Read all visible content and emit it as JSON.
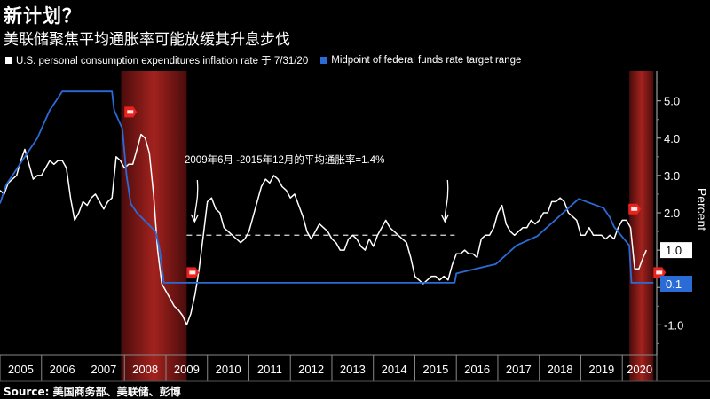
{
  "header": {
    "title": "新计划？",
    "subtitle": "美联储聚焦平均通胀率可能放缓其升息步伐"
  },
  "legend": [
    {
      "label": "U.S. personal consumption expenditures inflation rate 于 7/31/20",
      "color": "#ffffff"
    },
    {
      "label": "Midpoint of federal funds rate target range",
      "color": "#2b6bd6"
    }
  ],
  "source": "Source: 美国商务部、美联储、彭博",
  "chart_data": {
    "type": "line",
    "ylabel": "Percent",
    "ylim": [
      -1.8,
      5.8
    ],
    "xlim": [
      2005.0,
      2020.83
    ],
    "yticks": [
      {
        "value": 5,
        "label": "5.0"
      },
      {
        "value": 4,
        "label": "4.0"
      },
      {
        "value": 3,
        "label": "3.0"
      },
      {
        "value": 2,
        "label": "2.0"
      },
      {
        "value": 1,
        "label": "1.0"
      },
      {
        "value": 0,
        "label": "0.0"
      },
      {
        "value": -1,
        "label": "-1.0"
      }
    ],
    "xtick_labels": [
      "2005",
      "2006",
      "2007",
      "2008",
      "2009",
      "2010",
      "2011",
      "2012",
      "2013",
      "2014",
      "2015",
      "2016",
      "2017",
      "2018",
      "2019",
      "2020"
    ],
    "recessions": [
      [
        2007.92,
        2009.5
      ],
      [
        2020.17,
        2020.75
      ]
    ],
    "annotation": {
      "text": "2009年6月 -2015年12月的平均通胀率=1.4%",
      "value": 1.4,
      "x_start": 2009.5,
      "x_end": 2015.96
    },
    "last_value_labels": [
      {
        "series": "pce",
        "text": "1.0",
        "value": 1.0
      },
      {
        "series": "ffr",
        "text": "0.1",
        "value": 0.1
      }
    ],
    "rec_flags": [
      {
        "x": 2008.0,
        "y": 4.7
      },
      {
        "x": 2009.5,
        "y": 0.4
      },
      {
        "x": 2020.15,
        "y": 2.1
      },
      {
        "x": 2020.75,
        "y": 0.4
      }
    ],
    "series": [
      {
        "name": "U.S. personal consumption expenditures inflation rate",
        "color": "#ffffff",
        "points": [
          [
            2005.0,
            2.6
          ],
          [
            2005.1,
            2.5
          ],
          [
            2005.2,
            2.8
          ],
          [
            2005.3,
            2.9
          ],
          [
            2005.4,
            3.0
          ],
          [
            2005.5,
            3.4
          ],
          [
            2005.6,
            3.7
          ],
          [
            2005.7,
            3.3
          ],
          [
            2005.8,
            2.9
          ],
          [
            2005.9,
            3.0
          ],
          [
            2006.0,
            3.0
          ],
          [
            2006.1,
            3.2
          ],
          [
            2006.2,
            3.4
          ],
          [
            2006.3,
            3.3
          ],
          [
            2006.4,
            3.4
          ],
          [
            2006.5,
            3.4
          ],
          [
            2006.6,
            3.2
          ],
          [
            2006.7,
            2.4
          ],
          [
            2006.8,
            1.8
          ],
          [
            2006.9,
            2.0
          ],
          [
            2007.0,
            2.3
          ],
          [
            2007.1,
            2.2
          ],
          [
            2007.2,
            2.4
          ],
          [
            2007.3,
            2.5
          ],
          [
            2007.4,
            2.3
          ],
          [
            2007.5,
            2.1
          ],
          [
            2007.6,
            2.3
          ],
          [
            2007.7,
            2.4
          ],
          [
            2007.8,
            3.5
          ],
          [
            2007.9,
            3.4
          ],
          [
            2008.0,
            3.2
          ],
          [
            2008.1,
            3.3
          ],
          [
            2008.2,
            3.3
          ],
          [
            2008.3,
            3.7
          ],
          [
            2008.4,
            4.1
          ],
          [
            2008.5,
            4.0
          ],
          [
            2008.6,
            3.6
          ],
          [
            2008.7,
            2.5
          ],
          [
            2008.8,
            1.0
          ],
          [
            2008.9,
            0.1
          ],
          [
            2009.0,
            -0.1
          ],
          [
            2009.1,
            -0.3
          ],
          [
            2009.2,
            -0.5
          ],
          [
            2009.3,
            -0.6
          ],
          [
            2009.4,
            -0.75
          ],
          [
            2009.5,
            -1.0
          ],
          [
            2009.6,
            -0.7
          ],
          [
            2009.7,
            -0.2
          ],
          [
            2009.8,
            0.5
          ],
          [
            2009.9,
            1.4
          ],
          [
            2010.0,
            2.3
          ],
          [
            2010.1,
            2.4
          ],
          [
            2010.2,
            2.1
          ],
          [
            2010.3,
            2.0
          ],
          [
            2010.4,
            1.6
          ],
          [
            2010.5,
            1.5
          ],
          [
            2010.6,
            1.4
          ],
          [
            2010.7,
            1.3
          ],
          [
            2010.8,
            1.2
          ],
          [
            2010.9,
            1.3
          ],
          [
            2011.0,
            1.5
          ],
          [
            2011.1,
            1.9
          ],
          [
            2011.2,
            2.3
          ],
          [
            2011.3,
            2.7
          ],
          [
            2011.4,
            2.9
          ],
          [
            2011.5,
            2.8
          ],
          [
            2011.6,
            3.0
          ],
          [
            2011.7,
            2.9
          ],
          [
            2011.8,
            2.7
          ],
          [
            2011.9,
            2.6
          ],
          [
            2012.0,
            2.4
          ],
          [
            2012.1,
            2.5
          ],
          [
            2012.2,
            2.2
          ],
          [
            2012.3,
            1.9
          ],
          [
            2012.4,
            1.5
          ],
          [
            2012.5,
            1.3
          ],
          [
            2012.6,
            1.5
          ],
          [
            2012.7,
            1.7
          ],
          [
            2012.8,
            1.6
          ],
          [
            2012.9,
            1.5
          ],
          [
            2013.0,
            1.3
          ],
          [
            2013.1,
            1.2
          ],
          [
            2013.2,
            1.0
          ],
          [
            2013.3,
            1.0
          ],
          [
            2013.4,
            1.3
          ],
          [
            2013.5,
            1.4
          ],
          [
            2013.6,
            1.3
          ],
          [
            2013.7,
            1.1
          ],
          [
            2013.8,
            1.0
          ],
          [
            2013.9,
            1.3
          ],
          [
            2014.0,
            1.1
          ],
          [
            2014.1,
            1.4
          ],
          [
            2014.2,
            1.6
          ],
          [
            2014.3,
            1.8
          ],
          [
            2014.4,
            1.6
          ],
          [
            2014.5,
            1.5
          ],
          [
            2014.6,
            1.4
          ],
          [
            2014.7,
            1.3
          ],
          [
            2014.8,
            1.2
          ],
          [
            2014.9,
            0.8
          ],
          [
            2015.0,
            0.3
          ],
          [
            2015.1,
            0.2
          ],
          [
            2015.2,
            0.1
          ],
          [
            2015.3,
            0.2
          ],
          [
            2015.4,
            0.3
          ],
          [
            2015.5,
            0.3
          ],
          [
            2015.6,
            0.2
          ],
          [
            2015.7,
            0.3
          ],
          [
            2015.8,
            0.2
          ],
          [
            2015.9,
            0.6
          ],
          [
            2016.0,
            0.9
          ],
          [
            2016.1,
            0.9
          ],
          [
            2016.2,
            1.0
          ],
          [
            2016.3,
            0.9
          ],
          [
            2016.4,
            0.9
          ],
          [
            2016.5,
            0.8
          ],
          [
            2016.6,
            1.3
          ],
          [
            2016.7,
            1.4
          ],
          [
            2016.8,
            1.4
          ],
          [
            2016.9,
            1.6
          ],
          [
            2017.0,
            2.0
          ],
          [
            2017.1,
            2.2
          ],
          [
            2017.2,
            1.7
          ],
          [
            2017.3,
            1.5
          ],
          [
            2017.4,
            1.4
          ],
          [
            2017.5,
            1.5
          ],
          [
            2017.6,
            1.6
          ],
          [
            2017.7,
            1.6
          ],
          [
            2017.8,
            1.8
          ],
          [
            2017.9,
            1.7
          ],
          [
            2018.0,
            1.8
          ],
          [
            2018.1,
            2.0
          ],
          [
            2018.2,
            2.0
          ],
          [
            2018.3,
            2.3
          ],
          [
            2018.4,
            2.3
          ],
          [
            2018.5,
            2.4
          ],
          [
            2018.6,
            2.3
          ],
          [
            2018.7,
            2.0
          ],
          [
            2018.8,
            1.9
          ],
          [
            2018.9,
            1.8
          ],
          [
            2019.0,
            1.4
          ],
          [
            2019.1,
            1.4
          ],
          [
            2019.2,
            1.6
          ],
          [
            2019.3,
            1.4
          ],
          [
            2019.4,
            1.4
          ],
          [
            2019.5,
            1.4
          ],
          [
            2019.6,
            1.3
          ],
          [
            2019.7,
            1.4
          ],
          [
            2019.8,
            1.3
          ],
          [
            2019.9,
            1.6
          ],
          [
            2020.0,
            1.8
          ],
          [
            2020.1,
            1.8
          ],
          [
            2020.2,
            1.6
          ],
          [
            2020.3,
            0.5
          ],
          [
            2020.4,
            0.5
          ],
          [
            2020.5,
            0.8
          ],
          [
            2020.58,
            1.0
          ]
        ]
      },
      {
        "name": "Midpoint of federal funds rate target range",
        "color": "#2b6bd6",
        "points": [
          [
            2005.0,
            2.25
          ],
          [
            2005.15,
            2.75
          ],
          [
            2005.3,
            3.0
          ],
          [
            2005.45,
            3.25
          ],
          [
            2005.6,
            3.5
          ],
          [
            2005.75,
            3.75
          ],
          [
            2005.9,
            4.0
          ],
          [
            2006.0,
            4.25
          ],
          [
            2006.1,
            4.5
          ],
          [
            2006.2,
            4.75
          ],
          [
            2006.35,
            5.0
          ],
          [
            2006.5,
            5.25
          ],
          [
            2007.7,
            5.25
          ],
          [
            2007.75,
            4.75
          ],
          [
            2007.85,
            4.5
          ],
          [
            2007.95,
            4.25
          ],
          [
            2008.05,
            3.0
          ],
          [
            2008.15,
            2.25
          ],
          [
            2008.3,
            2.0
          ],
          [
            2008.75,
            1.5
          ],
          [
            2008.85,
            1.0
          ],
          [
            2008.95,
            0.125
          ],
          [
            2015.96,
            0.125
          ],
          [
            2016.0,
            0.375
          ],
          [
            2016.95,
            0.625
          ],
          [
            2017.2,
            0.875
          ],
          [
            2017.45,
            1.125
          ],
          [
            2017.95,
            1.375
          ],
          [
            2018.2,
            1.625
          ],
          [
            2018.45,
            1.875
          ],
          [
            2018.7,
            2.125
          ],
          [
            2018.95,
            2.375
          ],
          [
            2019.55,
            2.125
          ],
          [
            2019.7,
            1.875
          ],
          [
            2019.8,
            1.625
          ],
          [
            2020.17,
            1.125
          ],
          [
            2020.22,
            0.125
          ],
          [
            2020.75,
            0.125
          ]
        ]
      }
    ]
  }
}
